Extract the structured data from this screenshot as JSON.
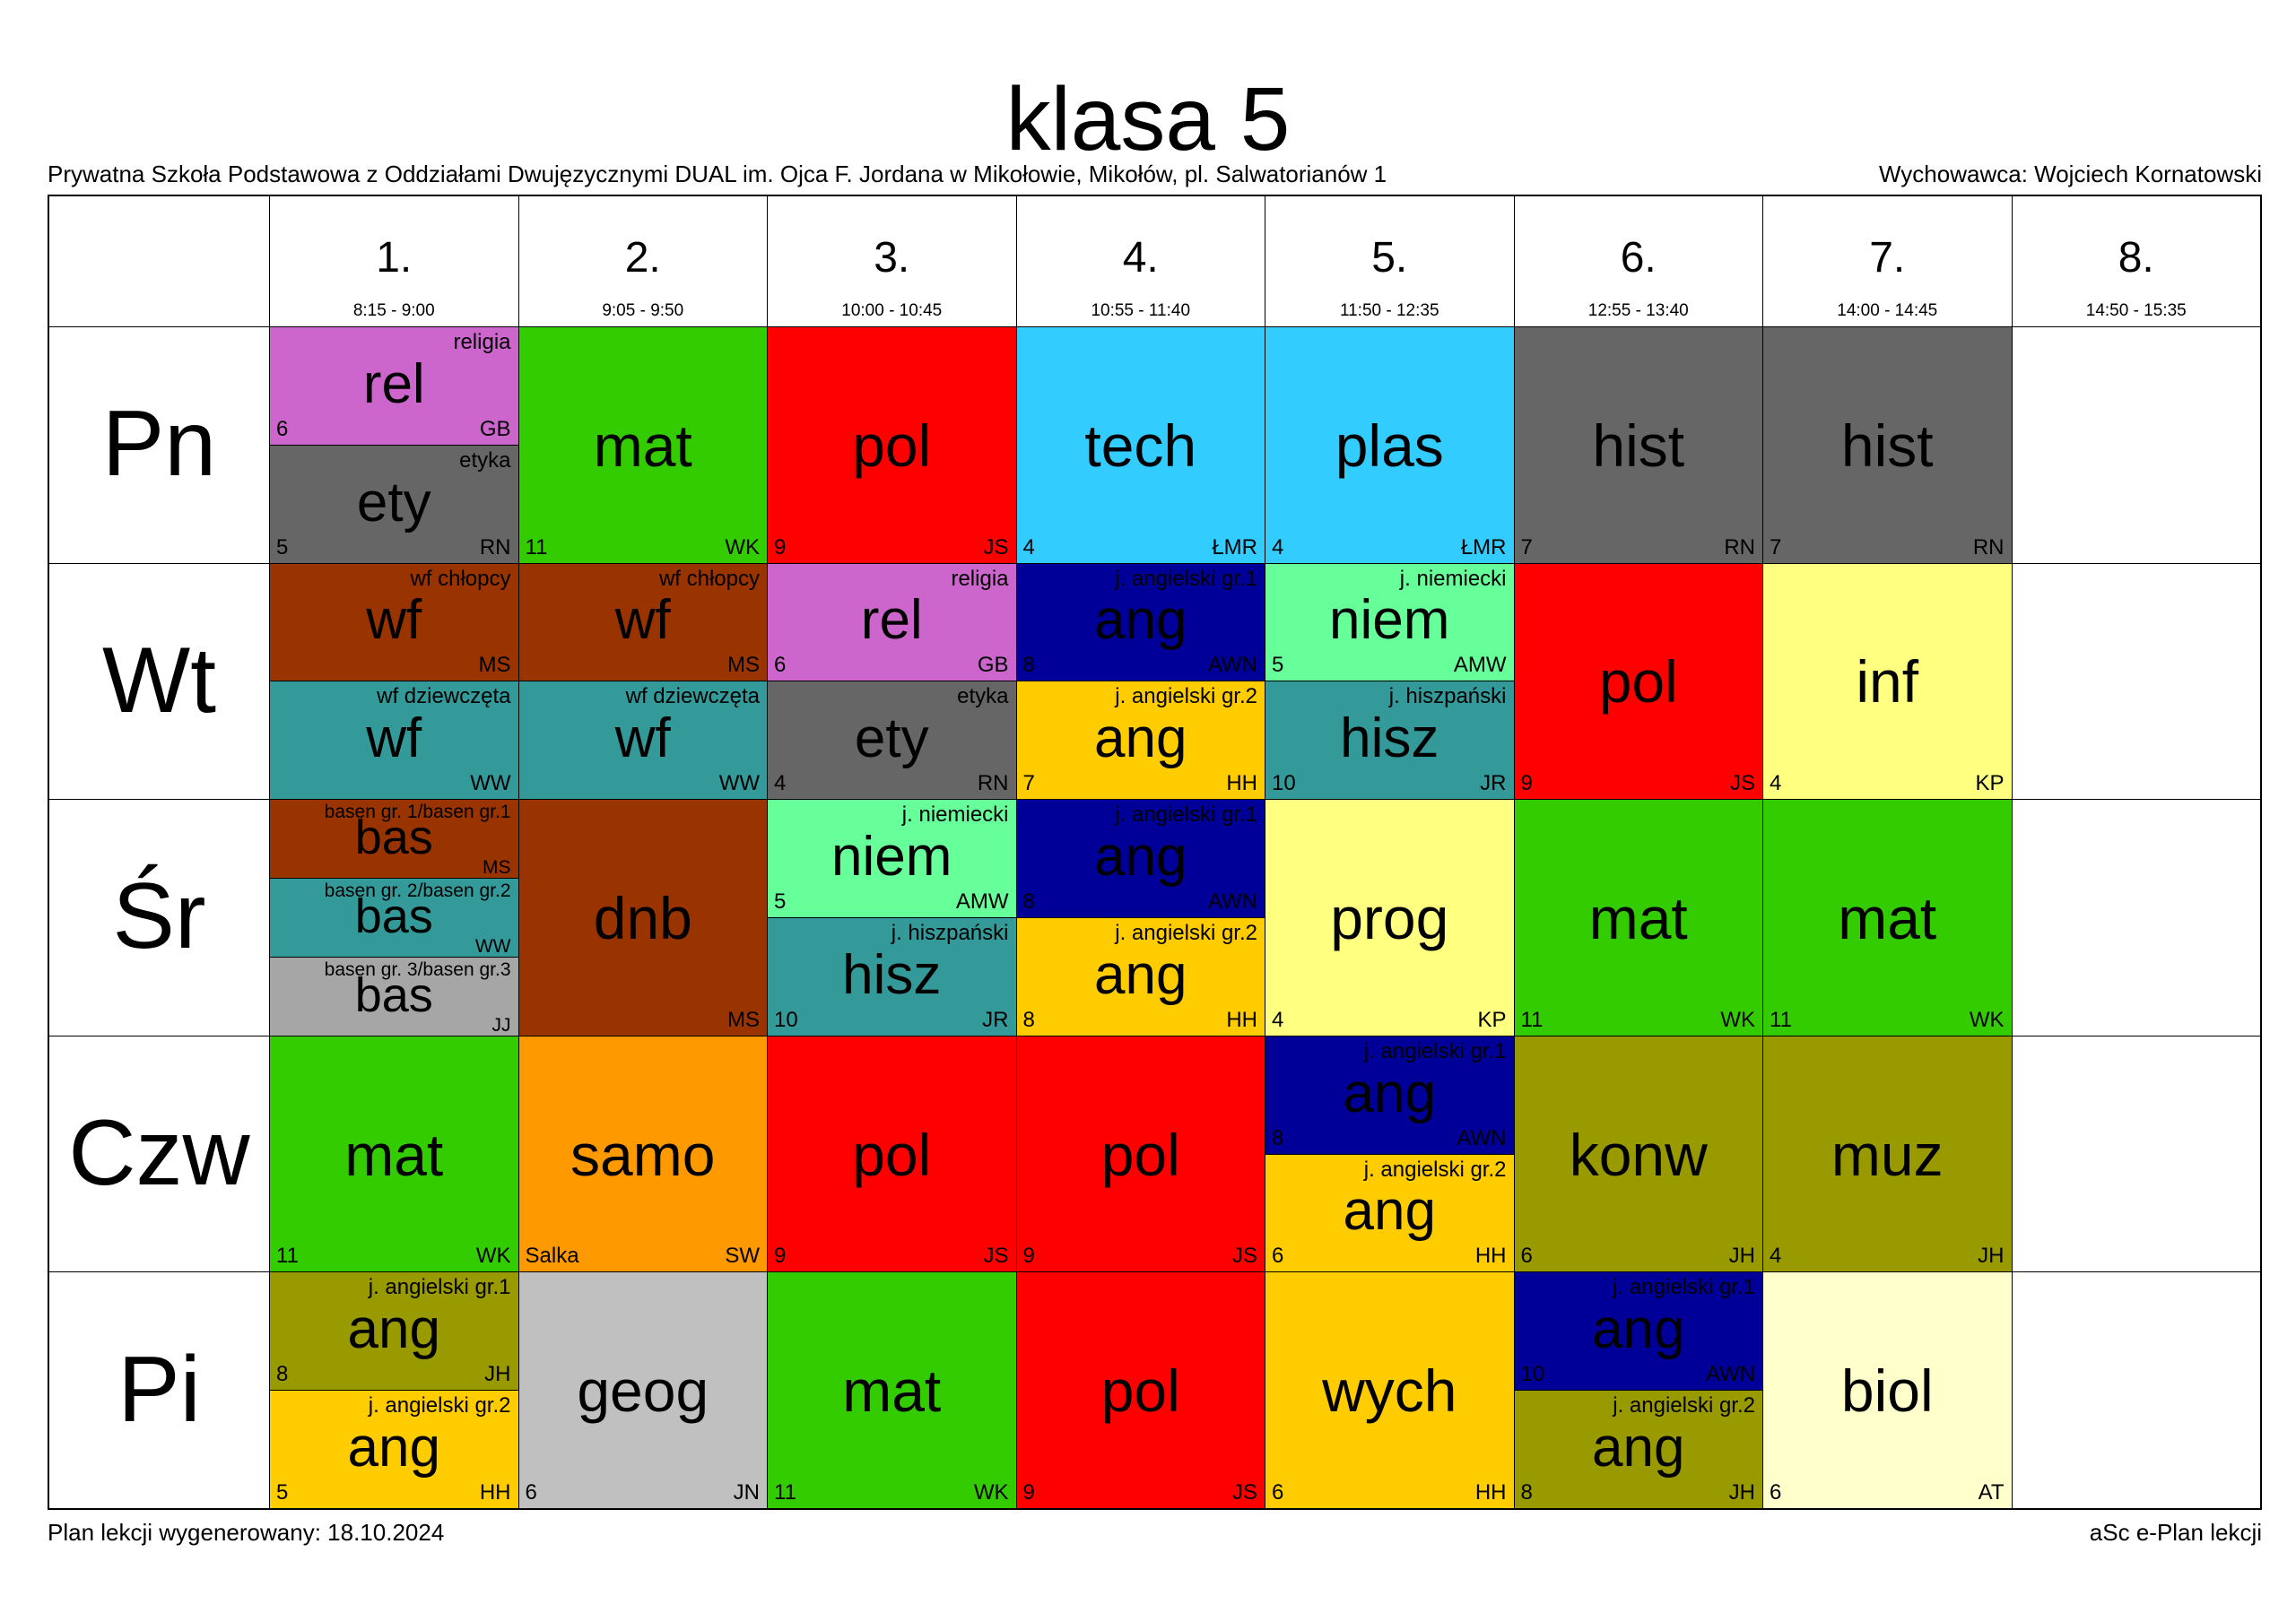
{
  "header": {
    "title": "klasa 5",
    "school": "Prywatna Szkoła Podstawowa z Oddziałami Dwujęzycznymi DUAL im. Ojca F. Jordana w Mikołowie, Mikołów, pl. Salwatorianów 1",
    "form_teacher": "Wychowawca: Wojciech Kornatowski"
  },
  "footer": {
    "generated": "Plan lekcji wygenerowany: 18.10.2024",
    "software": "aSc e-Plan lekcji"
  },
  "periods": [
    {
      "number": "1.",
      "time": "8:15 - 9:00"
    },
    {
      "number": "2.",
      "time": "9:05 - 9:50"
    },
    {
      "number": "3.",
      "time": "10:00 - 10:45"
    },
    {
      "number": "4.",
      "time": "10:55 - 11:40"
    },
    {
      "number": "5.",
      "time": "11:50 - 12:35"
    },
    {
      "number": "6.",
      "time": "12:55 - 13:40"
    },
    {
      "number": "7.",
      "time": "14:00 - 14:45"
    },
    {
      "number": "8.",
      "time": "14:50 - 15:35"
    }
  ],
  "days": [
    "Pn",
    "Wt",
    "Śr",
    "Czw",
    "Pi"
  ],
  "colors": {
    "rel": "#cc66cc",
    "ety": "#666666",
    "mat": "#33cc00",
    "pol": "#ff0000",
    "tech": "#33ccff",
    "plas": "#33ccff",
    "hist": "#666666",
    "wf_boys": "#993300",
    "wf_girls": "#339999",
    "ang_gr1": "#000099",
    "ang_gr2": "#ffcc00",
    "niem": "#66ff99",
    "hisz": "#339999",
    "inf": "#ffff80",
    "bas1": "#993300",
    "bas2": "#339999",
    "bas3": "#a6a6a6",
    "dnb": "#993300",
    "prog": "#ffff80",
    "samo": "#ff9900",
    "konw": "#999900",
    "muz": "#999900",
    "ang_olive": "#999900",
    "geog": "#c0c0c0",
    "wych": "#ffcc00",
    "biol": "#ffffcc"
  },
  "lessons": [
    {
      "day": 0,
      "period": 0,
      "slot": 0,
      "of": 2,
      "abbr": "rel",
      "full": "religia",
      "room": "6",
      "teacher": "GB",
      "color": "#cc66cc",
      "text_color": "#000000"
    },
    {
      "day": 0,
      "period": 0,
      "slot": 1,
      "of": 2,
      "abbr": "ety",
      "full": "etyka",
      "room": "5",
      "teacher": "RN",
      "color": "#666666",
      "text_color": "#000000"
    },
    {
      "day": 0,
      "period": 1,
      "slot": 0,
      "of": 1,
      "abbr": "mat",
      "full": "",
      "room": "11",
      "teacher": "WK",
      "color": "#33cc00",
      "text_color": "#000000"
    },
    {
      "day": 0,
      "period": 2,
      "slot": 0,
      "of": 1,
      "abbr": "pol",
      "full": "",
      "room": "9",
      "teacher": "JS",
      "color": "#ff0000",
      "text_color": "#000000"
    },
    {
      "day": 0,
      "period": 3,
      "slot": 0,
      "of": 1,
      "abbr": "tech",
      "full": "",
      "room": "4",
      "teacher": "ŁMR",
      "color": "#33ccff",
      "text_color": "#000000"
    },
    {
      "day": 0,
      "period": 4,
      "slot": 0,
      "of": 1,
      "abbr": "plas",
      "full": "",
      "room": "4",
      "teacher": "ŁMR",
      "color": "#33ccff",
      "text_color": "#000000"
    },
    {
      "day": 0,
      "period": 5,
      "slot": 0,
      "of": 1,
      "abbr": "hist",
      "full": "",
      "room": "7",
      "teacher": "RN",
      "color": "#666666",
      "text_color": "#000000"
    },
    {
      "day": 0,
      "period": 6,
      "slot": 0,
      "of": 1,
      "abbr": "hist",
      "full": "",
      "room": "7",
      "teacher": "RN",
      "color": "#666666",
      "text_color": "#000000"
    },
    {
      "day": 1,
      "period": 0,
      "slot": 0,
      "of": 2,
      "abbr": "wf",
      "full": "wf chłopcy",
      "room": "",
      "teacher": "MS",
      "color": "#993300",
      "text_color": "#000000"
    },
    {
      "day": 1,
      "period": 0,
      "slot": 1,
      "of": 2,
      "abbr": "wf",
      "full": "wf dziewczęta",
      "room": "",
      "teacher": "WW",
      "color": "#339999",
      "text_color": "#000000"
    },
    {
      "day": 1,
      "period": 1,
      "slot": 0,
      "of": 2,
      "abbr": "wf",
      "full": "wf chłopcy",
      "room": "",
      "teacher": "MS",
      "color": "#993300",
      "text_color": "#000000"
    },
    {
      "day": 1,
      "period": 1,
      "slot": 1,
      "of": 2,
      "abbr": "wf",
      "full": "wf dziewczęta",
      "room": "",
      "teacher": "WW",
      "color": "#339999",
      "text_color": "#000000"
    },
    {
      "day": 1,
      "period": 2,
      "slot": 0,
      "of": 2,
      "abbr": "rel",
      "full": "religia",
      "room": "6",
      "teacher": "GB",
      "color": "#cc66cc",
      "text_color": "#000000"
    },
    {
      "day": 1,
      "period": 2,
      "slot": 1,
      "of": 2,
      "abbr": "ety",
      "full": "etyka",
      "room": "4",
      "teacher": "RN",
      "color": "#666666",
      "text_color": "#000000"
    },
    {
      "day": 1,
      "period": 3,
      "slot": 0,
      "of": 2,
      "abbr": "ang",
      "full": "j. angielski gr.1",
      "room": "8",
      "teacher": "AWN",
      "color": "#000099",
      "text_color": "#000000"
    },
    {
      "day": 1,
      "period": 3,
      "slot": 1,
      "of": 2,
      "abbr": "ang",
      "full": "j. angielski gr.2",
      "room": "7",
      "teacher": "HH",
      "color": "#ffcc00",
      "text_color": "#000000"
    },
    {
      "day": 1,
      "period": 4,
      "slot": 0,
      "of": 2,
      "abbr": "niem",
      "full": "j. niemiecki",
      "room": "5",
      "teacher": "AMW",
      "color": "#66ff99",
      "text_color": "#000000"
    },
    {
      "day": 1,
      "period": 4,
      "slot": 1,
      "of": 2,
      "abbr": "hisz",
      "full": "j. hiszpański",
      "room": "10",
      "teacher": "JR",
      "color": "#339999",
      "text_color": "#000000"
    },
    {
      "day": 1,
      "period": 5,
      "slot": 0,
      "of": 1,
      "abbr": "pol",
      "full": "",
      "room": "9",
      "teacher": "JS",
      "color": "#ff0000",
      "text_color": "#000000"
    },
    {
      "day": 1,
      "period": 6,
      "slot": 0,
      "of": 1,
      "abbr": "inf",
      "full": "",
      "room": "4",
      "teacher": "KP",
      "color": "#ffff80",
      "text_color": "#000000"
    },
    {
      "day": 2,
      "period": 0,
      "slot": 0,
      "of": 3,
      "abbr": "bas",
      "full": "basen gr. 1/basen gr.1",
      "room": "",
      "teacher": "MS",
      "color": "#993300",
      "text_color": "#000000"
    },
    {
      "day": 2,
      "period": 0,
      "slot": 1,
      "of": 3,
      "abbr": "bas",
      "full": "basen gr. 2/basen gr.2",
      "room": "",
      "teacher": "WW",
      "color": "#339999",
      "text_color": "#000000"
    },
    {
      "day": 2,
      "period": 0,
      "slot": 2,
      "of": 3,
      "abbr": "bas",
      "full": "basen gr. 3/basen gr.3",
      "room": "",
      "teacher": "JJ",
      "color": "#a6a6a6",
      "text_color": "#000000"
    },
    {
      "day": 2,
      "period": 1,
      "slot": 0,
      "of": 1,
      "abbr": "dnb",
      "full": "",
      "room": "",
      "teacher": "MS",
      "color": "#993300",
      "text_color": "#000000"
    },
    {
      "day": 2,
      "period": 2,
      "slot": 0,
      "of": 2,
      "abbr": "niem",
      "full": "j. niemiecki",
      "room": "5",
      "teacher": "AMW",
      "color": "#66ff99",
      "text_color": "#000000"
    },
    {
      "day": 2,
      "period": 2,
      "slot": 1,
      "of": 2,
      "abbr": "hisz",
      "full": "j. hiszpański",
      "room": "10",
      "teacher": "JR",
      "color": "#339999",
      "text_color": "#000000"
    },
    {
      "day": 2,
      "period": 3,
      "slot": 0,
      "of": 2,
      "abbr": "ang",
      "full": "j. angielski gr.1",
      "room": "8",
      "teacher": "AWN",
      "color": "#000099",
      "text_color": "#000000"
    },
    {
      "day": 2,
      "period": 3,
      "slot": 1,
      "of": 2,
      "abbr": "ang",
      "full": "j. angielski gr.2",
      "room": "8",
      "teacher": "HH",
      "color": "#ffcc00",
      "text_color": "#000000"
    },
    {
      "day": 2,
      "period": 4,
      "slot": 0,
      "of": 1,
      "abbr": "prog",
      "full": "",
      "room": "4",
      "teacher": "KP",
      "color": "#ffff80",
      "text_color": "#000000"
    },
    {
      "day": 2,
      "period": 5,
      "slot": 0,
      "of": 1,
      "abbr": "mat",
      "full": "",
      "room": "11",
      "teacher": "WK",
      "color": "#33cc00",
      "text_color": "#000000"
    },
    {
      "day": 2,
      "period": 6,
      "slot": 0,
      "of": 1,
      "abbr": "mat",
      "full": "",
      "room": "11",
      "teacher": "WK",
      "color": "#33cc00",
      "text_color": "#000000"
    },
    {
      "day": 3,
      "period": 0,
      "slot": 0,
      "of": 1,
      "abbr": "mat",
      "full": "",
      "room": "11",
      "teacher": "WK",
      "color": "#33cc00",
      "text_color": "#000000"
    },
    {
      "day": 3,
      "period": 1,
      "slot": 0,
      "of": 1,
      "abbr": "samo",
      "full": "",
      "room": "Salka",
      "teacher": "SW",
      "color": "#ff9900",
      "text_color": "#000000"
    },
    {
      "day": 3,
      "period": 2,
      "slot": 0,
      "of": 1,
      "abbr": "pol",
      "full": "",
      "room": "9",
      "teacher": "JS",
      "color": "#ff0000",
      "text_color": "#000000"
    },
    {
      "day": 3,
      "period": 3,
      "slot": 0,
      "of": 1,
      "abbr": "pol",
      "full": "",
      "room": "9",
      "teacher": "JS",
      "color": "#ff0000",
      "text_color": "#000000"
    },
    {
      "day": 3,
      "period": 4,
      "slot": 0,
      "of": 2,
      "abbr": "ang",
      "full": "j. angielski gr.1",
      "room": "8",
      "teacher": "AWN",
      "color": "#000099",
      "text_color": "#000000"
    },
    {
      "day": 3,
      "period": 4,
      "slot": 1,
      "of": 2,
      "abbr": "ang",
      "full": "j. angielski gr.2",
      "room": "6",
      "teacher": "HH",
      "color": "#ffcc00",
      "text_color": "#000000"
    },
    {
      "day": 3,
      "period": 5,
      "slot": 0,
      "of": 1,
      "abbr": "konw",
      "full": "",
      "room": "6",
      "teacher": "JH",
      "color": "#999900",
      "text_color": "#000000"
    },
    {
      "day": 3,
      "period": 6,
      "slot": 0,
      "of": 1,
      "abbr": "muz",
      "full": "",
      "room": "4",
      "teacher": "JH",
      "color": "#999900",
      "text_color": "#000000"
    },
    {
      "day": 4,
      "period": 0,
      "slot": 0,
      "of": 2,
      "abbr": "ang",
      "full": "j. angielski gr.1",
      "room": "8",
      "teacher": "JH",
      "color": "#999900",
      "text_color": "#000000"
    },
    {
      "day": 4,
      "period": 0,
      "slot": 1,
      "of": 2,
      "abbr": "ang",
      "full": "j. angielski gr.2",
      "room": "5",
      "teacher": "HH",
      "color": "#ffcc00",
      "text_color": "#000000"
    },
    {
      "day": 4,
      "period": 1,
      "slot": 0,
      "of": 1,
      "abbr": "geog",
      "full": "",
      "room": "6",
      "teacher": "JN",
      "color": "#c0c0c0",
      "text_color": "#000000"
    },
    {
      "day": 4,
      "period": 2,
      "slot": 0,
      "of": 1,
      "abbr": "mat",
      "full": "",
      "room": "11",
      "teacher": "WK",
      "color": "#33cc00",
      "text_color": "#000000"
    },
    {
      "day": 4,
      "period": 3,
      "slot": 0,
      "of": 1,
      "abbr": "pol",
      "full": "",
      "room": "9",
      "teacher": "JS",
      "color": "#ff0000",
      "text_color": "#000000"
    },
    {
      "day": 4,
      "period": 4,
      "slot": 0,
      "of": 1,
      "abbr": "wych",
      "full": "",
      "room": "6",
      "teacher": "HH",
      "color": "#ffcc00",
      "text_color": "#000000"
    },
    {
      "day": 4,
      "period": 5,
      "slot": 0,
      "of": 2,
      "abbr": "ang",
      "full": "j. angielski gr.1",
      "room": "10",
      "teacher": "AWN",
      "color": "#000099",
      "text_color": "#000000"
    },
    {
      "day": 4,
      "period": 5,
      "slot": 1,
      "of": 2,
      "abbr": "ang",
      "full": "j. angielski gr.2",
      "room": "8",
      "teacher": "JH",
      "color": "#999900",
      "text_color": "#000000"
    },
    {
      "day": 4,
      "period": 6,
      "slot": 0,
      "of": 1,
      "abbr": "biol",
      "full": "",
      "room": "6",
      "teacher": "AT",
      "color": "#ffffcc",
      "text_color": "#000000"
    }
  ]
}
